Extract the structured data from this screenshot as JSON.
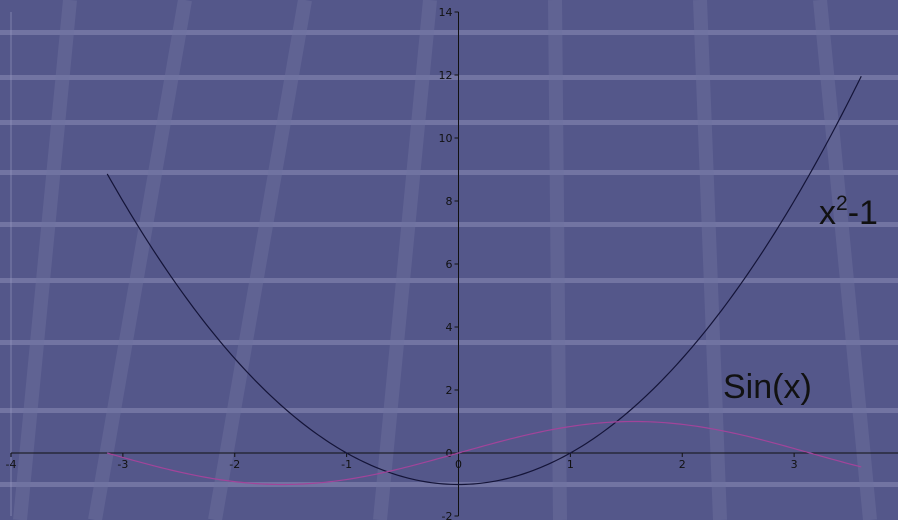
{
  "chart_data": {
    "type": "line",
    "xlim": [
      -4,
      4
    ],
    "ylim": [
      -2,
      14
    ],
    "x_ticks": [
      "-4",
      "-3",
      "-2",
      "-1",
      "0",
      "1",
      "2",
      "3"
    ],
    "y_ticks": [
      "-2",
      "0",
      "2",
      "4",
      "6",
      "8",
      "10",
      "12",
      "14"
    ],
    "series": [
      {
        "name": "x²-1",
        "formula": "x^2 - 1",
        "x_range": [
          -3.14,
          3.6
        ],
        "color": "#141438"
      },
      {
        "name": "Sin(x)",
        "formula": "sin(x)",
        "x_range": [
          -3.14,
          3.6
        ],
        "color": "#a2449a"
      }
    ],
    "annotations": [
      {
        "base": "x",
        "superscript": "2",
        "tail": "-1",
        "series": "x²-1"
      },
      {
        "text": "Sin(x)",
        "series": "Sin(x)"
      }
    ]
  },
  "colors": {
    "background": "#54578a",
    "band": "#8a8cb6",
    "stripe": "#6f72a0",
    "axis": "#111111"
  }
}
